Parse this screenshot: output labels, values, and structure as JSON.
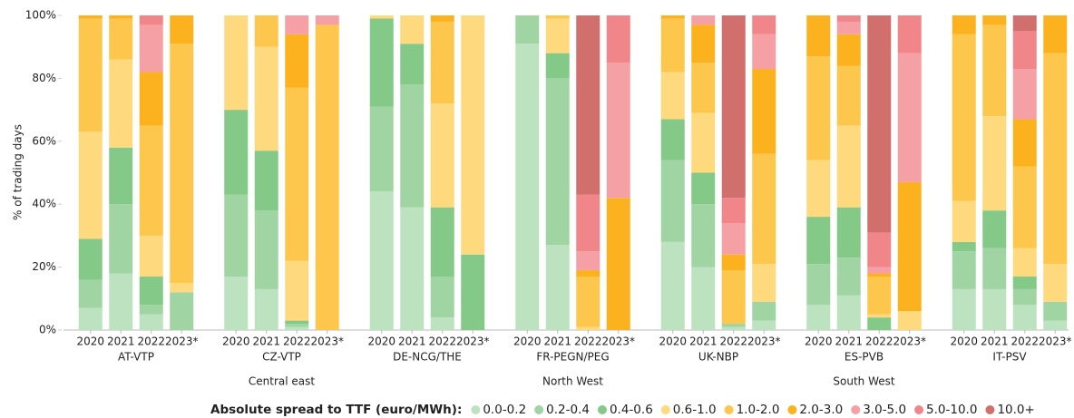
{
  "chart_data": {
    "type": "stacked-bar",
    "ylabel": "% of trading days",
    "ylim": [
      0,
      100
    ],
    "yticks": [
      {
        "value": 0,
        "label": "0%"
      },
      {
        "value": 20,
        "label": "20%"
      },
      {
        "value": 40,
        "label": "40%"
      },
      {
        "value": 60,
        "label": "60%"
      },
      {
        "value": 80,
        "label": "80%"
      },
      {
        "value": 100,
        "label": "100%"
      }
    ],
    "categories": [
      "2020",
      "2021",
      "2022",
      "2023*",
      "2020",
      "2021",
      "2022",
      "2023*",
      "2020",
      "2021",
      "2022",
      "2023*",
      "2020",
      "2021",
      "2022",
      "2023*",
      "2020",
      "2021",
      "2022",
      "2023*",
      "2020",
      "2021",
      "2022",
      "2023*",
      "2020",
      "2021",
      "2022",
      "2023*"
    ],
    "groups": [
      "AT-VTP",
      "CZ-VTP",
      "DE-NCG/THE",
      "FR-PEGN/PEG",
      "UK-NBP",
      "ES-PVB",
      "IT-PSV"
    ],
    "regions": [
      null,
      "Central east",
      null,
      "North West",
      null,
      "South West",
      null
    ],
    "legend_title": "Absolute spread to TTF (euro/MWh):",
    "series": [
      {
        "name": "0.0-0.2",
        "color": "#bde2bf",
        "values": [
          7,
          18,
          5,
          0,
          17,
          13,
          1,
          0,
          44,
          39,
          4,
          0,
          91,
          27,
          0,
          0,
          28,
          20,
          1,
          3,
          8,
          11,
          0,
          0,
          13,
          13,
          8,
          3
        ]
      },
      {
        "name": "0.2-0.4",
        "color": "#a0d5a3",
        "values": [
          9,
          22,
          3,
          12,
          26,
          25,
          1,
          0,
          27,
          39,
          13,
          0,
          9,
          53,
          0,
          0,
          26,
          20,
          1,
          6,
          13,
          12,
          0,
          0,
          12,
          13,
          5,
          6
        ]
      },
      {
        "name": "0.4-0.6",
        "color": "#84c987",
        "values": [
          13,
          18,
          9,
          0,
          27,
          19,
          1,
          0,
          28,
          13,
          22,
          24,
          0,
          8,
          0,
          0,
          13,
          10,
          0,
          0,
          15,
          16,
          4,
          0,
          3,
          12,
          4,
          0
        ]
      },
      {
        "name": "0.6-1.0",
        "color": "#fed97e",
        "values": [
          34,
          28,
          13,
          3,
          30,
          33,
          19,
          0,
          1,
          9,
          33,
          76,
          0,
          11,
          1,
          0,
          15,
          19,
          0,
          12,
          18,
          26,
          1,
          6,
          13,
          30,
          9,
          12
        ]
      },
      {
        "name": "1.0-2.0",
        "color": "#fdc64c",
        "values": [
          36,
          13,
          35,
          76,
          0,
          10,
          55,
          97,
          0,
          0,
          26,
          0,
          0,
          1,
          16,
          0,
          17,
          16,
          17,
          35,
          33,
          19,
          12,
          0,
          53,
          29,
          26,
          67
        ]
      },
      {
        "name": "2.0-3.0",
        "color": "#fbb21e",
        "values": [
          1,
          1,
          17,
          9,
          0,
          0,
          17,
          0,
          0,
          0,
          2,
          0,
          0,
          0,
          2,
          42,
          1,
          12,
          5,
          27,
          13,
          10,
          1,
          41,
          6,
          3,
          15,
          12
        ]
      },
      {
        "name": "3.0-5.0",
        "color": "#f5a0a4",
        "values": [
          0,
          0,
          15,
          0,
          0,
          0,
          6,
          3,
          0,
          0,
          0,
          0,
          0,
          0,
          6,
          43,
          0,
          3,
          10,
          11,
          0,
          4,
          2,
          41,
          0,
          0,
          16,
          0
        ]
      },
      {
        "name": "5.0-10.0",
        "color": "#f0868a",
        "values": [
          0,
          0,
          3,
          0,
          0,
          0,
          0,
          0,
          0,
          0,
          0,
          0,
          0,
          0,
          18,
          15,
          0,
          0,
          8,
          6,
          0,
          2,
          11,
          12,
          0,
          0,
          12,
          0
        ]
      },
      {
        "name": "10.0+",
        "color": "#d16f6d",
        "values": [
          0,
          0,
          0,
          0,
          0,
          0,
          0,
          0,
          0,
          0,
          0,
          0,
          0,
          0,
          57,
          0,
          0,
          0,
          58,
          0,
          0,
          0,
          69,
          0,
          0,
          0,
          5,
          0
        ]
      }
    ]
  }
}
